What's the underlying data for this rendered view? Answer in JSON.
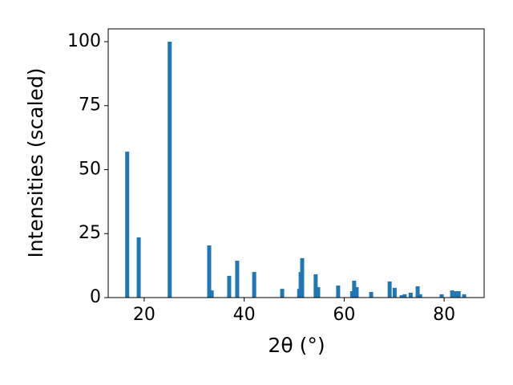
{
  "chart_data": {
    "type": "bar",
    "color": "#1f77b4",
    "xlabel": "2θ (°)",
    "ylabel": "Intensities (scaled)",
    "x": [
      16.6,
      18.9,
      25.1,
      33.0,
      33.5,
      37.0,
      38.6,
      42.0,
      47.6,
      51.0,
      51.3,
      51.6,
      54.3,
      54.8,
      58.8,
      61.6,
      62.0,
      62.5,
      65.4,
      69.1,
      70.1,
      71.5,
      72.1,
      73.3,
      74.7,
      75.2,
      79.5,
      81.6,
      82.4,
      82.9,
      84.0
    ],
    "values": [
      57.0,
      23.5,
      100,
      20.4,
      2.8,
      8.5,
      14.4,
      10.0,
      3.4,
      3.4,
      10.0,
      15.4,
      9.1,
      4.1,
      4.7,
      2.5,
      6.6,
      4.1,
      2.2,
      6.3,
      3.8,
      0.9,
      1.3,
      1.9,
      4.4,
      1.3,
      1.3,
      2.8,
      2.5,
      2.5,
      1.3
    ],
    "xlim": [
      12.8,
      88.0
    ],
    "ylim": [
      0,
      105
    ],
    "xticks": [
      20,
      40,
      60,
      80
    ],
    "yticks": [
      0,
      25,
      50,
      75,
      100
    ]
  }
}
